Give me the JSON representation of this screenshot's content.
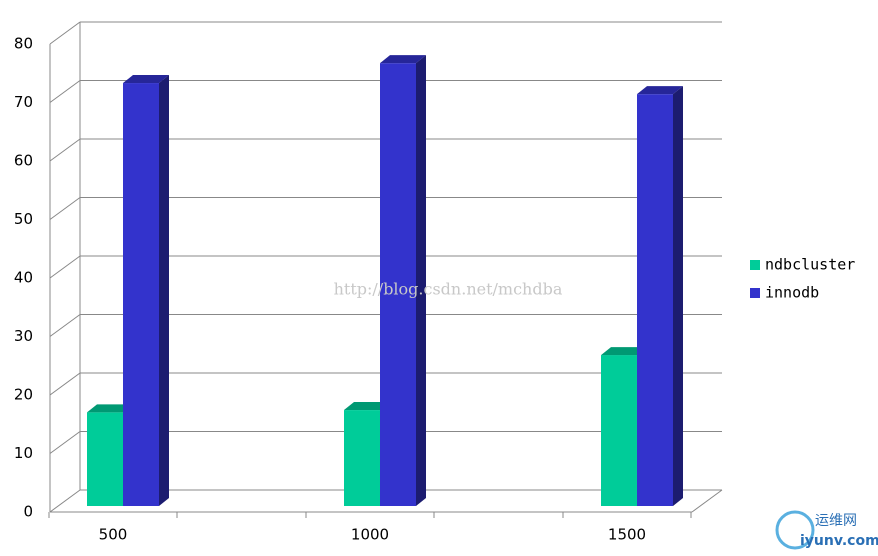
{
  "chart_data": {
    "type": "bar3d",
    "categories": [
      "500",
      "1000",
      "1500"
    ],
    "series": [
      {
        "name": "ndbcluster",
        "color": "#00cc99",
        "values": [
          16,
          16.4,
          25.8
        ]
      },
      {
        "name": "innodb",
        "color": "#3333cc",
        "values": [
          72.3,
          75.7,
          70.4
        ]
      }
    ],
    "ylim": [
      0,
      80
    ],
    "yticks": [
      0,
      10,
      20,
      30,
      40,
      50,
      60,
      70,
      80
    ],
    "grid": true,
    "legend": "right"
  },
  "watermark": "http://blog.csdn.net/mchdba",
  "logo": {
    "name": "运维网",
    "site": "iyunv.com"
  }
}
